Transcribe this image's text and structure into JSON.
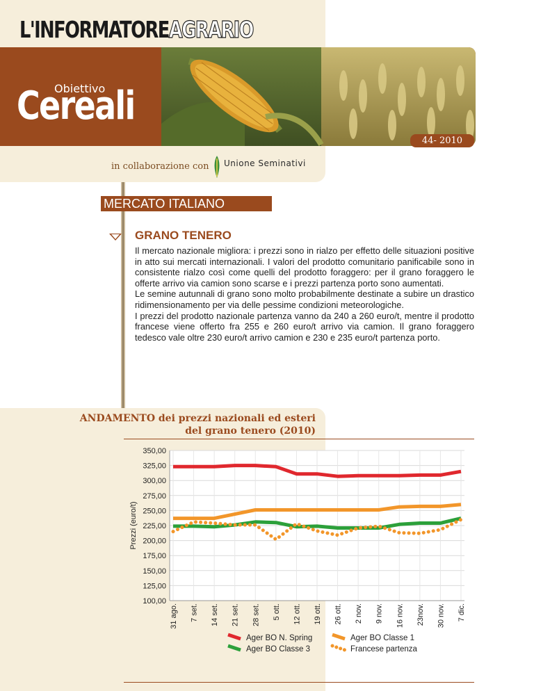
{
  "header": {
    "logo_part1": "L'INFORMATORE",
    "logo_part2": "AGRARIO",
    "obiettivo": "Obiettivo",
    "cereali": "Cereali",
    "issue": "44- 2010",
    "collaboration": "in collaborazione con",
    "partner": "Unione Seminativi"
  },
  "section": {
    "title": "MERCATO ITALIANO",
    "subtitle": "GRANO TENERO",
    "paragraphs": [
      "Il mercato nazionale migliora: i prezzi sono in rialzo per effetto delle situazioni positive in atto sui mercati internazionali. I valori del prodotto comunitario panificabile sono in consistente rialzo così come quelli del prodotto foraggero: per il grano foraggero le offerte arrivo via camion sono scarse e i prezzi partenza porto sono aumentati.",
      "Le semine autunnali di grano sono molto probabilmente destinate a subire un drastico ridimensionamento per via delle pessime condizioni meteorologiche.",
      "I prezzi del prodotto nazionale partenza vanno da 240 a 260 euro/t, mentre il prodotto francese viene offerto fra 255 e 260 euro/t arrivo via camion. Il grano foraggero tedesco vale oltre 230 euro/t arrivo camion e 230 e 235 euro/t partenza porto."
    ]
  },
  "chart_data": {
    "type": "line",
    "title": "ANDAMENTO dei prezzi nazionali ed esteri del grano tenero (2010)",
    "title_line1": "ANDAMENTO dei prezzi nazionali ed esteri",
    "title_line2": "del grano tenero (2010)",
    "ylabel": "Prezzi (euro/t)",
    "xlabel": "",
    "ylim": [
      100,
      350
    ],
    "yticks": [
      "350,00",
      "325,00",
      "300,00",
      "275,00",
      "250,00",
      "225,00",
      "200,00",
      "175,00",
      "150,00",
      "125,00",
      "100,00"
    ],
    "categories": [
      "31 ago.",
      "7 set.",
      "14 set.",
      "21 set.",
      "28 set.",
      "5 ott.",
      "12 ott.",
      "19 ott.",
      "26 ott.",
      "2 nov.",
      "9 nov.",
      "16 nov.",
      "23nov.",
      "30 nov.",
      "7 dic."
    ],
    "grid": true,
    "legend_position": "bottom",
    "series": [
      {
        "name": "Ager BO N. Spring",
        "color": "#e0282e",
        "style": "solid",
        "values": [
          323,
          323,
          323,
          325,
          325,
          323,
          311,
          311,
          307,
          308,
          308,
          308,
          309,
          309,
          315
        ]
      },
      {
        "name": "Ager BO Classe 1",
        "color": "#f2962a",
        "style": "solid",
        "values": [
          237,
          237,
          237,
          244,
          251,
          251,
          251,
          251,
          251,
          251,
          251,
          256,
          257,
          257,
          260
        ]
      },
      {
        "name": "Ager BO Classe 3",
        "color": "#2ca03a",
        "style": "solid",
        "values": [
          224,
          224,
          223,
          226,
          231,
          230,
          223,
          224,
          221,
          221,
          221,
          227,
          229,
          229,
          237
        ]
      },
      {
        "name": "Francese partenza",
        "color": "#f2962a",
        "style": "dotted",
        "values": [
          215,
          231,
          229,
          226,
          226,
          202,
          228,
          216,
          209,
          221,
          224,
          213,
          212,
          218,
          235
        ]
      }
    ]
  }
}
